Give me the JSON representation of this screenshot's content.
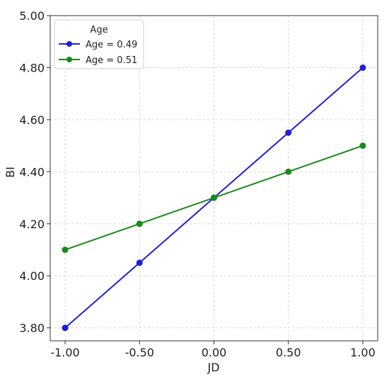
{
  "chart_data": {
    "type": "line",
    "title": "",
    "xlabel": "JD",
    "ylabel": "BI",
    "xlim": [
      -1.1,
      1.1
    ],
    "ylim": [
      3.75,
      5.0
    ],
    "xticks": [
      -1.0,
      -0.5,
      0.0,
      0.5,
      1.0
    ],
    "xtick_labels": [
      "-1.00",
      "-0.50",
      "0.00",
      "0.50",
      "1.00"
    ],
    "yticks": [
      3.8,
      4.0,
      4.2,
      4.4,
      4.6,
      4.8,
      5.0
    ],
    "ytick_labels": [
      "3.80",
      "4.00",
      "4.20",
      "4.40",
      "4.60",
      "4.80",
      "5.00"
    ],
    "grid": true,
    "legend": {
      "title": "Age",
      "placement": "top-left"
    },
    "x": [
      -1.0,
      -0.5,
      0.0,
      0.5,
      1.0
    ],
    "series": [
      {
        "name": "Age = 0.49",
        "color": "#1f1fd6",
        "values": [
          3.8,
          4.05,
          4.3,
          4.55,
          4.8
        ]
      },
      {
        "name": "Age = 0.51",
        "color": "#1a8a1a",
        "values": [
          4.1,
          4.2,
          4.3,
          4.4,
          4.5
        ]
      }
    ]
  }
}
